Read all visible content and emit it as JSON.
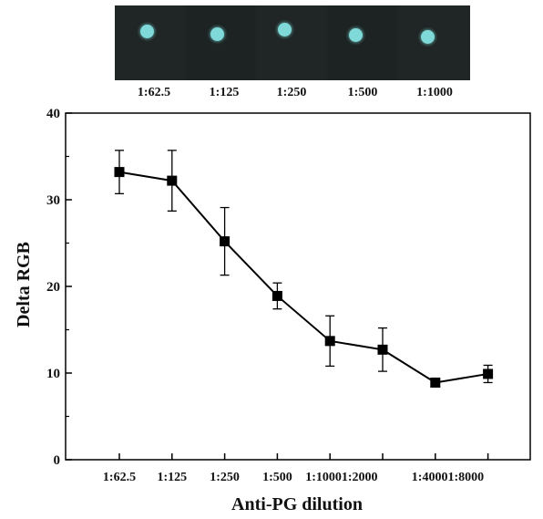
{
  "strip": {
    "labels": [
      "1:62.5",
      "1:125",
      "1:250",
      "1:500",
      "1:1000"
    ],
    "dot_color": "#7fd9d8",
    "background": "#1f2424"
  },
  "chart_data": {
    "type": "line",
    "title": "",
    "xlabel": "Anti-PG dilution",
    "ylabel": "Delta RGB",
    "categories": [
      "1:62.5",
      "1:125",
      "1:250",
      "1:500",
      "1:1000",
      "1:2000",
      "1:4000",
      "1:8000"
    ],
    "tick_labels_printed": [
      "1:62.5",
      "1:125",
      "1:250",
      "1:500",
      "1:10001:2000",
      "1:40001:8000"
    ],
    "values": [
      33.2,
      32.2,
      25.2,
      18.9,
      13.7,
      12.7,
      8.9,
      9.9
    ],
    "errors": [
      2.5,
      3.5,
      3.9,
      1.5,
      2.9,
      2.5,
      0.3,
      1.0
    ],
    "ylim": [
      0,
      40
    ],
    "yticks": [
      "0",
      "10",
      "20",
      "30",
      "40"
    ],
    "marker": "square",
    "grid": false,
    "color": "#000000"
  }
}
